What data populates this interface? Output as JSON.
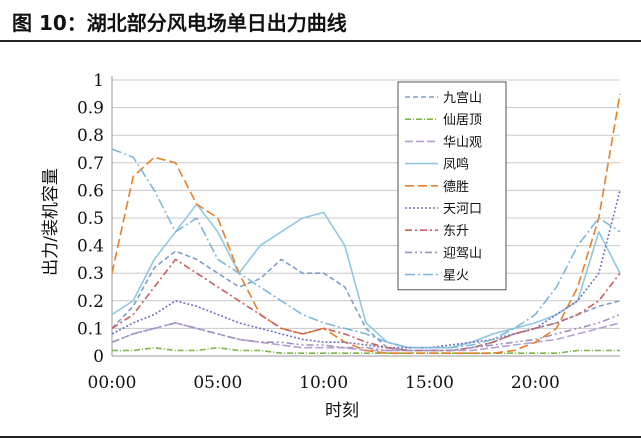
{
  "figure": {
    "title": "图 10：湖北部分风电场单日出力曲线"
  },
  "chart_data": {
    "type": "line",
    "title": "",
    "xlabel": "时刻",
    "ylabel": "出力/装机容量",
    "ylim": [
      0,
      1
    ],
    "xlim": [
      0,
      24
    ],
    "yticks": [
      "0",
      "0.1",
      "0.2",
      "0.3",
      "0.4",
      "0.5",
      "0.6",
      "0.7",
      "0.8",
      "0.9",
      "1"
    ],
    "xticks": [
      {
        "v": 0,
        "label": "00:00"
      },
      {
        "v": 5,
        "label": "05:00"
      },
      {
        "v": 10,
        "label": "10:00"
      },
      {
        "v": 15,
        "label": "15:00"
      },
      {
        "v": 20,
        "label": "20:00"
      }
    ],
    "grid": true,
    "legend_position": "top-right",
    "x": [
      0,
      1,
      2,
      3,
      4,
      5,
      6,
      7,
      8,
      9,
      10,
      11,
      12,
      13,
      14,
      15,
      16,
      17,
      18,
      19,
      20,
      21,
      22,
      23,
      24
    ],
    "series": [
      {
        "name": "九宫山",
        "color": "#7f9fc8",
        "dash": "5,3",
        "values": [
          0.1,
          0.18,
          0.32,
          0.38,
          0.35,
          0.3,
          0.25,
          0.28,
          0.35,
          0.3,
          0.3,
          0.25,
          0.1,
          0.03,
          0.02,
          0.02,
          0.02,
          0.03,
          0.05,
          0.08,
          0.1,
          0.12,
          0.15,
          0.18,
          0.2
        ]
      },
      {
        "name": "仙居顶",
        "color": "#7ab648",
        "dash": "6,2,1,2",
        "values": [
          0.02,
          0.02,
          0.03,
          0.02,
          0.02,
          0.03,
          0.02,
          0.02,
          0.01,
          0.01,
          0.01,
          0.01,
          0.01,
          0.01,
          0.01,
          0.01,
          0.01,
          0.01,
          0.01,
          0.01,
          0.01,
          0.01,
          0.02,
          0.02,
          0.02
        ]
      },
      {
        "name": "华山观",
        "color": "#b49fd0",
        "dash": "8,3",
        "values": [
          0.05,
          0.08,
          0.1,
          0.12,
          0.1,
          0.08,
          0.06,
          0.05,
          0.04,
          0.03,
          0.03,
          0.03,
          0.02,
          0.02,
          0.02,
          0.02,
          0.02,
          0.02,
          0.03,
          0.04,
          0.05,
          0.06,
          0.08,
          0.1,
          0.12
        ]
      },
      {
        "name": "凤鸣",
        "color": "#8fc8e0",
        "dash": "",
        "values": [
          0.15,
          0.2,
          0.35,
          0.45,
          0.55,
          0.45,
          0.3,
          0.4,
          0.45,
          0.5,
          0.52,
          0.4,
          0.12,
          0.05,
          0.03,
          0.03,
          0.03,
          0.05,
          0.08,
          0.1,
          0.12,
          0.15,
          0.2,
          0.45,
          0.3
        ]
      },
      {
        "name": "德胜",
        "color": "#e8802a",
        "dash": "9,4",
        "values": [
          0.3,
          0.65,
          0.72,
          0.7,
          0.55,
          0.5,
          0.3,
          0.15,
          0.1,
          0.08,
          0.1,
          0.05,
          0.02,
          0.01,
          0.01,
          0.01,
          0.01,
          0.01,
          0.01,
          0.02,
          0.05,
          0.1,
          0.25,
          0.5,
          0.95
        ]
      },
      {
        "name": "天河口",
        "color": "#7070c8",
        "dash": "2,2",
        "values": [
          0.08,
          0.12,
          0.15,
          0.2,
          0.18,
          0.15,
          0.12,
          0.1,
          0.08,
          0.06,
          0.05,
          0.05,
          0.04,
          0.03,
          0.03,
          0.03,
          0.04,
          0.05,
          0.06,
          0.08,
          0.1,
          0.15,
          0.2,
          0.3,
          0.6
        ]
      },
      {
        "name": "东升",
        "color": "#c86060",
        "dash": "7,3,2,3",
        "values": [
          0.1,
          0.15,
          0.25,
          0.35,
          0.3,
          0.25,
          0.2,
          0.15,
          0.1,
          0.08,
          0.1,
          0.08,
          0.05,
          0.03,
          0.02,
          0.02,
          0.02,
          0.03,
          0.05,
          0.08,
          0.1,
          0.12,
          0.15,
          0.2,
          0.3
        ]
      },
      {
        "name": "迎驾山",
        "color": "#a090c0",
        "dash": "7,3,2,3,2,3",
        "values": [
          0.05,
          0.08,
          0.1,
          0.12,
          0.1,
          0.08,
          0.06,
          0.05,
          0.05,
          0.04,
          0.04,
          0.03,
          0.03,
          0.02,
          0.02,
          0.02,
          0.02,
          0.03,
          0.04,
          0.05,
          0.06,
          0.08,
          0.1,
          0.12,
          0.15
        ]
      },
      {
        "name": "星火",
        "color": "#80b8d8",
        "dash": "10,3,2,3",
        "values": [
          0.75,
          0.72,
          0.6,
          0.45,
          0.5,
          0.35,
          0.3,
          0.25,
          0.2,
          0.15,
          0.12,
          0.1,
          0.08,
          0.05,
          0.03,
          0.03,
          0.03,
          0.04,
          0.06,
          0.1,
          0.15,
          0.25,
          0.4,
          0.5,
          0.45
        ]
      }
    ]
  }
}
